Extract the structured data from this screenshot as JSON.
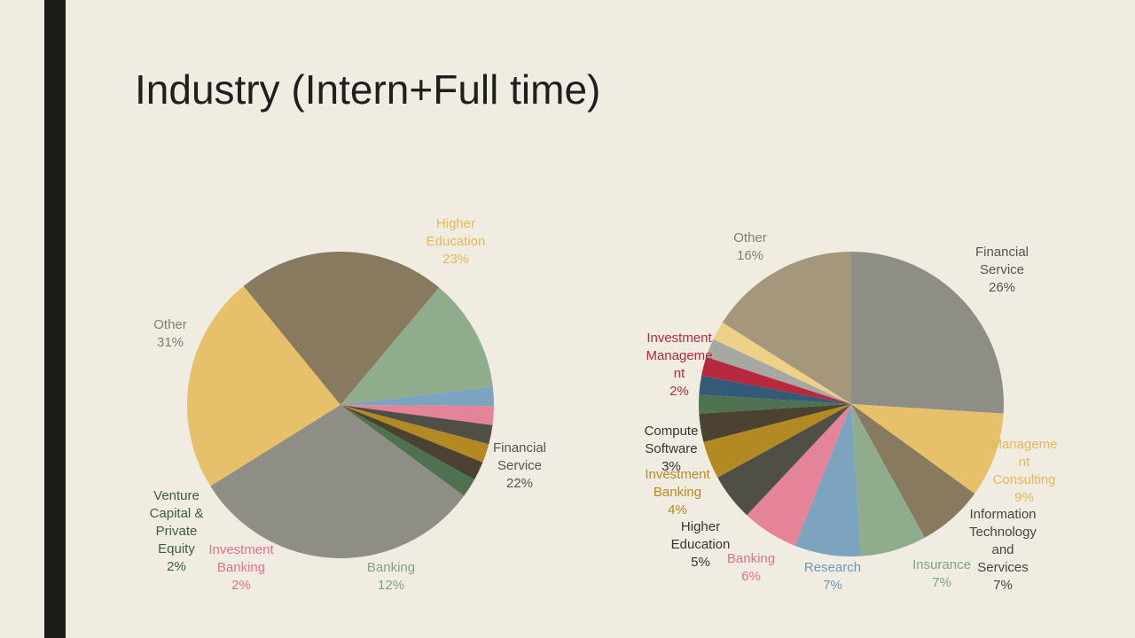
{
  "slide": {
    "title": "Industry (Intern+Full time)"
  },
  "chart_data": [
    {
      "type": "pie",
      "slices": [
        {
          "lines": [
            "Higher",
            "Education",
            "23%"
          ],
          "value": 23,
          "color": "#e6c16a",
          "label_color": "#e6b75a"
        },
        {
          "lines": [
            "Financial",
            "Service",
            "22%"
          ],
          "value": 22,
          "color": "#877a5f",
          "label_color": "#555555"
        },
        {
          "lines": [
            "Banking",
            "12%"
          ],
          "value": 12,
          "color": "#8fac8c",
          "label_color": "#7fa37e"
        },
        {
          "lines": [],
          "value": 2,
          "color": "#7aa4c0",
          "label_color": "#7aa4c0"
        },
        {
          "lines": [
            "Investment",
            "Banking",
            "2%"
          ],
          "value": 2,
          "color": "#e58499",
          "label_color": "#e0738b"
        },
        {
          "lines": [],
          "value": 2,
          "color": "#4f4f48",
          "label_color": "#4f4f48"
        },
        {
          "lines": [],
          "value": 2,
          "color": "#b38a22",
          "label_color": "#b38a22"
        },
        {
          "lines": [],
          "value": 2,
          "color": "#4b4232",
          "label_color": "#4b4232"
        },
        {
          "lines": [
            "Venture",
            "Capital &",
            "Private",
            "Equity",
            "2%"
          ],
          "value": 2,
          "color": "#4e7250",
          "label_color": "#3e5e40"
        },
        {
          "lines": [
            "Other",
            "31%"
          ],
          "value": 31,
          "color": "#8e8e86",
          "label_color": "#7e7e78"
        }
      ]
    },
    {
      "type": "pie",
      "slices": [
        {
          "lines": [
            "Financial",
            "Service",
            "26%"
          ],
          "value": 26,
          "color": "#8e8e86",
          "label_color": "#555555"
        },
        {
          "lines": [
            "Manageme",
            "nt",
            "Consulting",
            "9%"
          ],
          "value": 9,
          "color": "#e6c16a",
          "label_color": "#e6b75a"
        },
        {
          "lines": [
            "Information",
            "Technology",
            "and",
            "Services",
            "7%"
          ],
          "value": 7,
          "color": "#877a5f",
          "label_color": "#444444"
        },
        {
          "lines": [
            "Insurance",
            "7%"
          ],
          "value": 7,
          "color": "#8fac8c",
          "label_color": "#7fa37e"
        },
        {
          "lines": [
            "Research",
            "7%"
          ],
          "value": 7,
          "color": "#7aa4c0",
          "label_color": "#6b98b8"
        },
        {
          "lines": [
            "Banking",
            "6%"
          ],
          "value": 6,
          "color": "#e58499",
          "label_color": "#e0738b"
        },
        {
          "lines": [
            "Higher",
            "Education",
            "5%"
          ],
          "value": 5,
          "color": "#4f4f48",
          "label_color": "#333333"
        },
        {
          "lines": [
            "Investment",
            "Banking",
            "4%"
          ],
          "value": 4,
          "color": "#b38a22",
          "label_color": "#b88a1e"
        },
        {
          "lines": [
            "Compute",
            "Software",
            "3%"
          ],
          "value": 3,
          "color": "#4b4232",
          "label_color": "#333333"
        },
        {
          "lines": [],
          "value": 2,
          "color": "#4e7250",
          "label_color": "#4e7250"
        },
        {
          "lines": [],
          "value": 2,
          "color": "#335a76",
          "label_color": "#335a76"
        },
        {
          "lines": [
            "Investment",
            "Manageme",
            "nt",
            "2%"
          ],
          "value": 2,
          "color": "#b8283e",
          "label_color": "#b8283e"
        },
        {
          "lines": [],
          "value": 2,
          "color": "#a8a8a2",
          "label_color": "#a8a8a2"
        },
        {
          "lines": [],
          "value": 2,
          "color": "#ecd186",
          "label_color": "#ecd186"
        },
        {
          "lines": [
            "Other",
            "16%"
          ],
          "value": 16,
          "color": "#a5977b",
          "label_color": "#7e7e78"
        }
      ]
    }
  ]
}
